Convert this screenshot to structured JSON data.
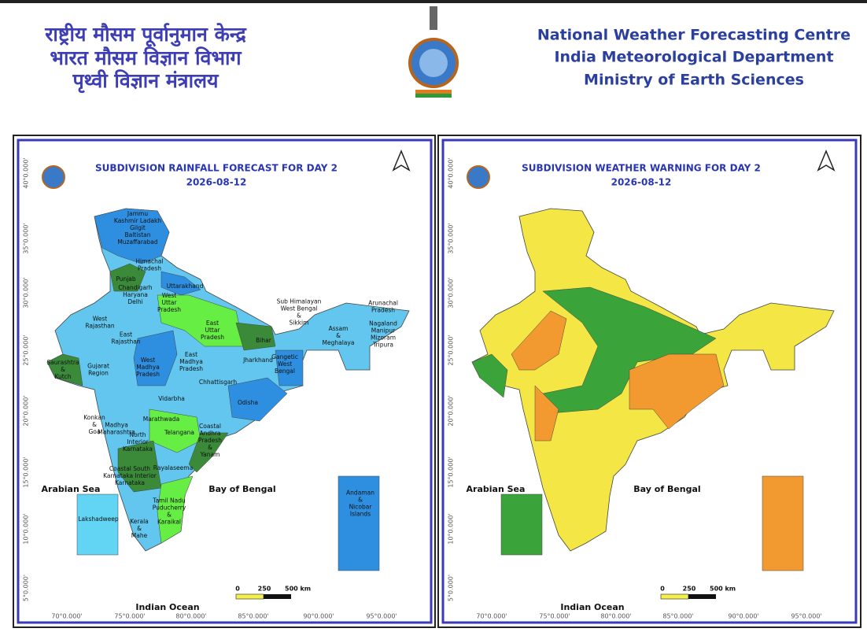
{
  "header": {
    "hindi": [
      "राष्ट्रीय मौसम पूर्वानुमान केन्द्र",
      "भारत मौसम विज्ञान विभाग",
      "पृथ्वी विज्ञान मंत्रालय"
    ],
    "english": [
      "National Weather Forecasting Centre",
      "India Meteorological Department",
      "Ministry of Earth Sciences"
    ]
  },
  "panels": [
    {
      "title": "SUBDIVISION RAINFALL FORECAST FOR DAY 2",
      "date": "2026-08-12",
      "latitudes": [
        "40°0.000'",
        "35°0.000'",
        "30°0.000'",
        "25°0.000'",
        "20°0.000'",
        "15°0.000'",
        "10°0.000'",
        "5°0.000'"
      ],
      "longitudes": [
        "70°0.000'",
        "75°0.000'",
        "80°0.000'",
        "85°0.000'",
        "90°0.000'",
        "95°0.000'"
      ],
      "seas": [
        "Arabian Sea",
        "Bay of Bengal",
        "Indian Ocean"
      ],
      "scale": [
        "0",
        "250",
        "500 km"
      ],
      "regions": [
        [
          "Jammu",
          "Kashmir Ladakh",
          "Gilgit",
          "Baltistan",
          "Muzaffarabad"
        ],
        [
          "Himachal",
          "Pradesh"
        ],
        [
          "Punjab"
        ],
        [
          "Uttarakhand"
        ],
        [
          "Chandigarh",
          "Haryana",
          "Delhi"
        ],
        [
          "West",
          "Uttar",
          "Pradesh"
        ],
        [
          "West",
          "Rajasthan"
        ],
        [
          "East",
          "Uttar",
          "Pradesh"
        ],
        [
          "Bihar"
        ],
        [
          "East",
          "Rajasthan"
        ],
        [
          "Sub Himalayan",
          "West Bengal",
          "&",
          "Sikkim"
        ],
        [
          "Arunachal",
          "Pradesh"
        ],
        [
          "Assam",
          "&",
          "Meghalaya"
        ],
        [
          "Nagaland",
          "Manipur",
          "Mizoram",
          "Tripura"
        ],
        [
          "West",
          "Madhya",
          "Pradesh"
        ],
        [
          "East",
          "Madhya",
          "Pradesh"
        ],
        [
          "Jharkhand"
        ],
        [
          "Gangetic",
          "West",
          "Bengal"
        ],
        [
          "Saurashtra",
          "&",
          "Kutch"
        ],
        [
          "Gujarat",
          "Region"
        ],
        [
          "Chhattisgarh"
        ],
        [
          "Odisha"
        ],
        [
          "Vidarbha"
        ],
        [
          "Marathwada"
        ],
        [
          "Konkan",
          "&",
          "Goa"
        ],
        [
          "Madhya",
          "Maharashtra"
        ],
        [
          "Telangana"
        ],
        [
          "North",
          "Interior",
          "Karnataka"
        ],
        [
          "Coastal",
          "Andhra",
          "Pradesh",
          "&",
          "Yanam"
        ],
        [
          "Rayalaseema"
        ],
        [
          "Coastal South",
          "Karnataka Interior",
          "Karnataka"
        ],
        [
          "Lakshadweep"
        ],
        [
          "Tamil Nadu",
          "Puducherry",
          "&",
          "Karaikal"
        ],
        [
          "Kerala",
          "&",
          "Mahe"
        ],
        [
          "Andaman",
          "&",
          "Nicobar",
          "Islands"
        ]
      ]
    },
    {
      "title": "SUBDIVISION WEATHER WARNING FOR DAY 2",
      "date": "2026-08-12",
      "latitudes": [
        "40°0.000'",
        "35°0.000'",
        "30°0.000'",
        "25°0.000'",
        "20°0.000'",
        "15°0.000'",
        "10°0.000'",
        "5°0.000'"
      ],
      "longitudes": [
        "70°0.000'",
        "75°0.000'",
        "80°0.000'",
        "85°0.000'",
        "90°0.000'",
        "95°0.000'"
      ],
      "seas": [
        "Arabian Sea",
        "Bay of Bengal",
        "Indian Ocean"
      ],
      "scale": [
        "0",
        "250",
        "500 km"
      ]
    }
  ]
}
